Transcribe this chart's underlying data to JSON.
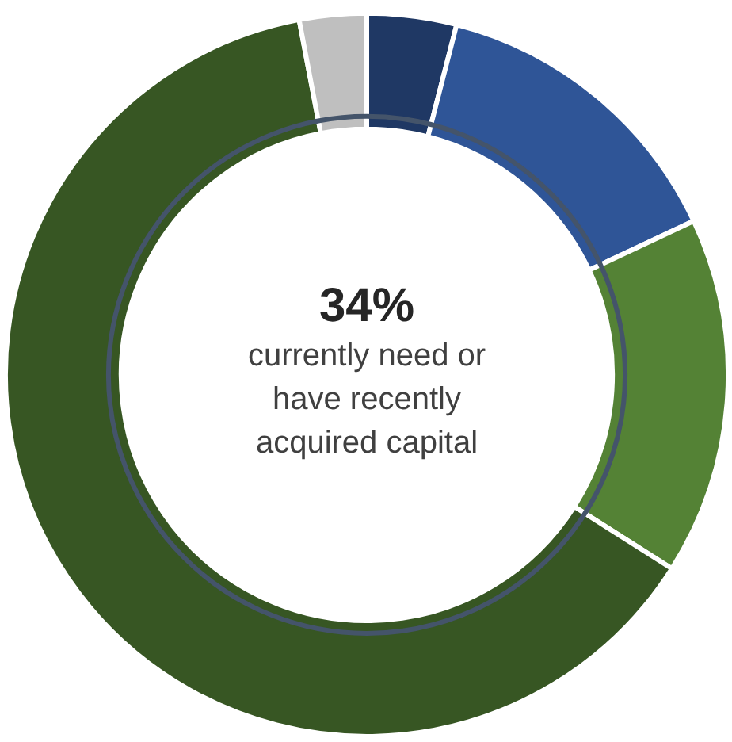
{
  "chart_data": {
    "type": "donut",
    "title": "34%",
    "annotations": [
      "currently need or\nhave recently\nacquired capital"
    ],
    "categories": [
      null,
      null,
      null,
      null,
      null
    ],
    "values": [
      4,
      14,
      16,
      63,
      3
    ],
    "colors": [
      "#1f3864",
      "#2f5597",
      "#548235",
      "#375623",
      "#bfbfbf"
    ]
  }
}
